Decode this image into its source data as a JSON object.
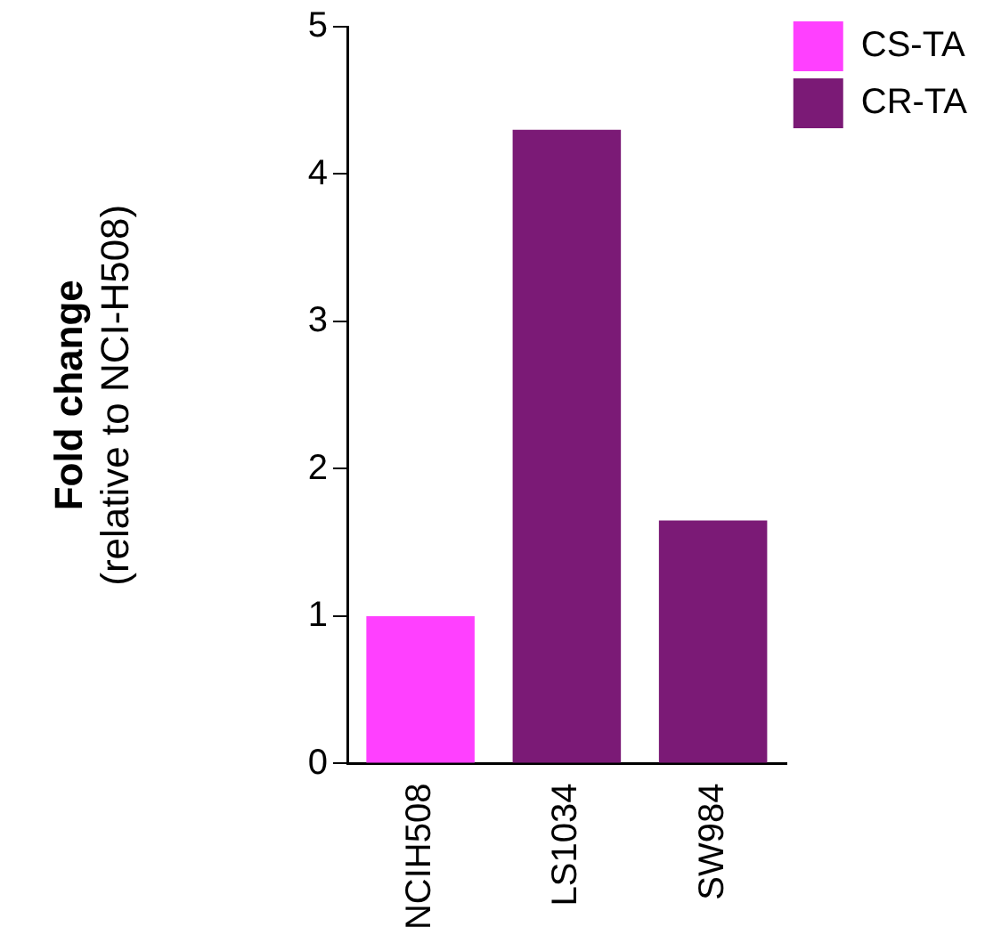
{
  "chart_data": {
    "type": "bar",
    "ylabel": "Fold change\n(relative to NCI-H508)",
    "categories": [
      "NCIH508",
      "LS1034",
      "SW984"
    ],
    "series": [
      {
        "name": "CS-TA",
        "color": "#ff40ff",
        "values": [
          1.0,
          null,
          null
        ]
      },
      {
        "name": "CR-TA",
        "color": "#7b1a76",
        "values": [
          null,
          4.3,
          1.65
        ]
      }
    ],
    "ylim": [
      0,
      5
    ],
    "yticks": [
      0,
      1,
      2,
      3,
      4,
      5
    ],
    "grid": false,
    "legend": "top right"
  }
}
